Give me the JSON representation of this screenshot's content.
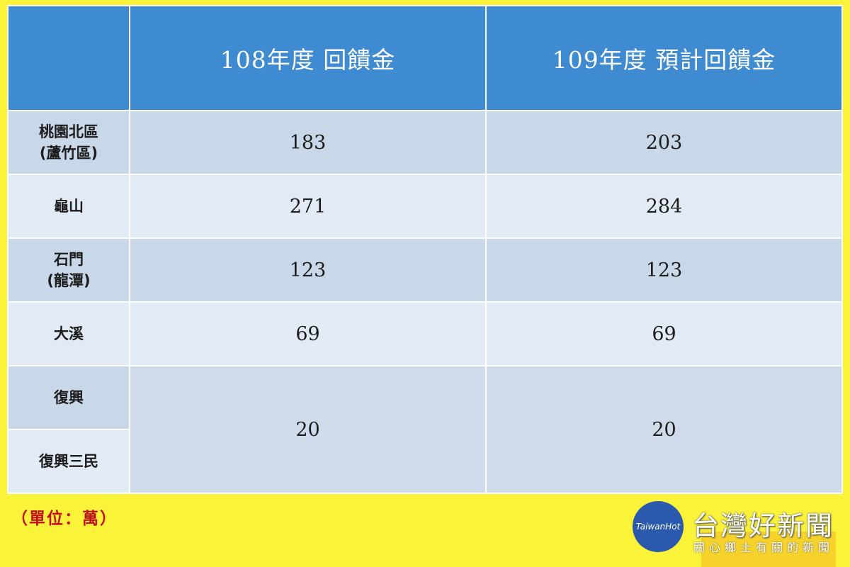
{
  "table": {
    "corner": "",
    "headers": [
      "108年度 回饋金",
      "109年度 預計回饋金"
    ],
    "rows": [
      {
        "label": "桃園北區(蘆竹區)",
        "label_line1": "桃園北區",
        "label_line2": "(蘆竹區)",
        "y108": "183",
        "y109": "203"
      },
      {
        "label": "龜山",
        "label_line1": "龜山",
        "label_line2": "",
        "y108": "271",
        "y109": "284"
      },
      {
        "label": "石門(龍潭)",
        "label_line1": "石門",
        "label_line2": "(龍潭)",
        "y108": "123",
        "y109": "123"
      },
      {
        "label": "大溪",
        "label_line1": "大溪",
        "label_line2": "",
        "y108": "69",
        "y109": "69"
      },
      {
        "label": "復興",
        "label_line1": "復興",
        "label_line2": "",
        "y108": "20",
        "y109": "20"
      },
      {
        "label": "復興三民",
        "label_line1": "復興三民",
        "label_line2": "",
        "y108": "",
        "y109": ""
      }
    ],
    "merged_note": "復興 and 復興三民 share one merged value cell per year"
  },
  "unit_note": "（單位：萬）",
  "watermark": {
    "logo_text": "TaiwanHot",
    "name": "台灣好新聞",
    "tagline": "關心鄉土有關的新聞"
  }
}
